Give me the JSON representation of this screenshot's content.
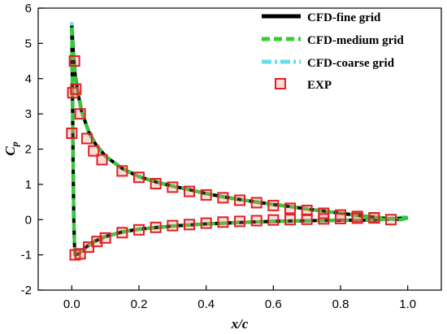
{
  "chart_data": {
    "type": "line",
    "title": "",
    "xlabel": "x/c",
    "ylabel": {
      "main": "C",
      "sub": "p"
    },
    "xlim": [
      -0.1,
      1.1
    ],
    "ylim": [
      -2,
      6
    ],
    "xticks": [
      0.0,
      0.2,
      0.4,
      0.6,
      0.8,
      1.0
    ],
    "xtick_labels": [
      "0.0",
      "0.2",
      "0.4",
      "0.6",
      "0.8",
      "1.0"
    ],
    "yticks": [
      -2,
      -1,
      0,
      1,
      2,
      3,
      4,
      5,
      6
    ],
    "ytick_labels": [
      "-2",
      "-1",
      "0",
      "1",
      "2",
      "3",
      "4",
      "5",
      "6"
    ],
    "grid": false,
    "legend_position": "top-right",
    "series": [
      {
        "name": "CFD-fine grid",
        "style": "solid",
        "color": "#000000",
        "upper": [
          [
            0.0,
            5.5
          ],
          [
            0.003,
            5.0
          ],
          [
            0.006,
            4.55
          ],
          [
            0.01,
            4.1
          ],
          [
            0.02,
            3.5
          ],
          [
            0.03,
            3.05
          ],
          [
            0.05,
            2.5
          ],
          [
            0.07,
            2.15
          ],
          [
            0.1,
            1.8
          ],
          [
            0.15,
            1.45
          ],
          [
            0.2,
            1.22
          ],
          [
            0.25,
            1.07
          ],
          [
            0.3,
            0.95
          ],
          [
            0.35,
            0.85
          ],
          [
            0.4,
            0.74
          ],
          [
            0.45,
            0.65
          ],
          [
            0.5,
            0.57
          ],
          [
            0.55,
            0.5
          ],
          [
            0.6,
            0.43
          ],
          [
            0.65,
            0.37
          ],
          [
            0.7,
            0.3
          ],
          [
            0.75,
            0.24
          ],
          [
            0.8,
            0.18
          ],
          [
            0.85,
            0.12
          ],
          [
            0.9,
            0.07
          ],
          [
            0.95,
            0.02
          ],
          [
            0.98,
            0.0
          ],
          [
            1.0,
            0.05
          ]
        ],
        "lower": [
          [
            0.0,
            5.5
          ],
          [
            0.002,
            3.5
          ],
          [
            0.004,
            1.5
          ],
          [
            0.006,
            0.0
          ],
          [
            0.008,
            -0.7
          ],
          [
            0.01,
            -1.0
          ],
          [
            0.02,
            -0.97
          ],
          [
            0.04,
            -0.8
          ],
          [
            0.06,
            -0.65
          ],
          [
            0.1,
            -0.48
          ],
          [
            0.15,
            -0.35
          ],
          [
            0.2,
            -0.27
          ],
          [
            0.3,
            -0.18
          ],
          [
            0.4,
            -0.12
          ],
          [
            0.5,
            -0.08
          ],
          [
            0.6,
            -0.05
          ],
          [
            0.7,
            -0.03
          ],
          [
            0.8,
            -0.02
          ],
          [
            0.9,
            -0.01
          ],
          [
            1.0,
            0.05
          ]
        ]
      },
      {
        "name": "CFD-medium grid",
        "style": "dashed",
        "color": "#33cc33",
        "upper": [
          [
            0.0,
            5.45
          ],
          [
            0.003,
            4.95
          ],
          [
            0.006,
            4.5
          ],
          [
            0.01,
            4.05
          ],
          [
            0.02,
            3.47
          ],
          [
            0.03,
            3.03
          ],
          [
            0.05,
            2.49
          ],
          [
            0.07,
            2.14
          ],
          [
            0.1,
            1.8
          ],
          [
            0.15,
            1.45
          ],
          [
            0.2,
            1.22
          ],
          [
            0.25,
            1.07
          ],
          [
            0.3,
            0.95
          ],
          [
            0.35,
            0.85
          ],
          [
            0.4,
            0.74
          ],
          [
            0.45,
            0.65
          ],
          [
            0.5,
            0.57
          ],
          [
            0.55,
            0.5
          ],
          [
            0.6,
            0.43
          ],
          [
            0.65,
            0.37
          ],
          [
            0.7,
            0.3
          ],
          [
            0.75,
            0.24
          ],
          [
            0.8,
            0.18
          ],
          [
            0.85,
            0.12
          ],
          [
            0.9,
            0.07
          ],
          [
            0.95,
            0.02
          ],
          [
            0.98,
            0.0
          ],
          [
            1.0,
            0.05
          ]
        ],
        "lower": [
          [
            0.0,
            5.45
          ],
          [
            0.002,
            3.5
          ],
          [
            0.004,
            1.5
          ],
          [
            0.006,
            0.0
          ],
          [
            0.008,
            -0.7
          ],
          [
            0.01,
            -1.0
          ],
          [
            0.02,
            -0.97
          ],
          [
            0.04,
            -0.8
          ],
          [
            0.06,
            -0.65
          ],
          [
            0.1,
            -0.48
          ],
          [
            0.15,
            -0.35
          ],
          [
            0.2,
            -0.27
          ],
          [
            0.3,
            -0.18
          ],
          [
            0.4,
            -0.12
          ],
          [
            0.5,
            -0.08
          ],
          [
            0.6,
            -0.05
          ],
          [
            0.7,
            -0.03
          ],
          [
            0.8,
            -0.02
          ],
          [
            0.9,
            -0.01
          ],
          [
            1.0,
            0.05
          ]
        ]
      },
      {
        "name": "CFD-coarse grid",
        "style": "dashdot",
        "color": "#66dde8",
        "upper": [
          [
            0.0,
            5.6
          ],
          [
            0.003,
            5.05
          ],
          [
            0.006,
            4.55
          ],
          [
            0.01,
            4.1
          ],
          [
            0.02,
            3.5
          ],
          [
            0.03,
            3.05
          ],
          [
            0.05,
            2.5
          ],
          [
            0.07,
            2.15
          ],
          [
            0.1,
            1.8
          ],
          [
            0.15,
            1.45
          ],
          [
            0.2,
            1.22
          ],
          [
            0.25,
            1.07
          ],
          [
            0.3,
            0.95
          ],
          [
            0.35,
            0.85
          ],
          [
            0.4,
            0.74
          ],
          [
            0.45,
            0.65
          ],
          [
            0.5,
            0.57
          ],
          [
            0.55,
            0.5
          ],
          [
            0.6,
            0.43
          ],
          [
            0.65,
            0.37
          ],
          [
            0.7,
            0.3
          ],
          [
            0.75,
            0.24
          ],
          [
            0.8,
            0.18
          ],
          [
            0.85,
            0.12
          ],
          [
            0.9,
            0.07
          ],
          [
            0.95,
            0.02
          ],
          [
            0.98,
            0.0
          ],
          [
            1.0,
            0.08
          ]
        ],
        "lower": [
          [
            0.0,
            5.6
          ],
          [
            0.002,
            3.5
          ],
          [
            0.004,
            1.5
          ],
          [
            0.006,
            0.0
          ],
          [
            0.008,
            -0.7
          ],
          [
            0.01,
            -1.0
          ],
          [
            0.02,
            -0.97
          ],
          [
            0.04,
            -0.8
          ],
          [
            0.06,
            -0.65
          ],
          [
            0.1,
            -0.48
          ],
          [
            0.15,
            -0.35
          ],
          [
            0.2,
            -0.27
          ],
          [
            0.3,
            -0.18
          ],
          [
            0.4,
            -0.12
          ],
          [
            0.5,
            -0.08
          ],
          [
            0.6,
            -0.05
          ],
          [
            0.7,
            -0.03
          ],
          [
            0.8,
            -0.02
          ],
          [
            0.9,
            -0.01
          ],
          [
            1.0,
            0.08
          ]
        ]
      },
      {
        "name": "EXP",
        "style": "markers",
        "color": "#e02020",
        "points": [
          [
            0.0,
            2.45
          ],
          [
            0.003,
            3.6
          ],
          [
            0.008,
            4.5
          ],
          [
            0.012,
            3.7
          ],
          [
            0.025,
            3.0
          ],
          [
            0.045,
            2.3
          ],
          [
            0.065,
            1.95
          ],
          [
            0.09,
            1.7
          ],
          [
            0.15,
            1.38
          ],
          [
            0.2,
            1.2
          ],
          [
            0.25,
            1.02
          ],
          [
            0.3,
            0.92
          ],
          [
            0.35,
            0.8
          ],
          [
            0.4,
            0.7
          ],
          [
            0.45,
            0.62
          ],
          [
            0.5,
            0.55
          ],
          [
            0.55,
            0.48
          ],
          [
            0.6,
            0.4
          ],
          [
            0.65,
            0.32
          ],
          [
            0.7,
            0.26
          ],
          [
            0.75,
            0.18
          ],
          [
            0.8,
            0.13
          ],
          [
            0.85,
            0.09
          ],
          [
            0.9,
            0.05
          ],
          [
            0.95,
            0.0
          ],
          [
            0.01,
            -1.0
          ],
          [
            0.025,
            -0.97
          ],
          [
            0.05,
            -0.78
          ],
          [
            0.075,
            -0.62
          ],
          [
            0.1,
            -0.52
          ],
          [
            0.15,
            -0.37
          ],
          [
            0.2,
            -0.29
          ],
          [
            0.25,
            -0.22
          ],
          [
            0.3,
            -0.17
          ],
          [
            0.35,
            -0.14
          ],
          [
            0.4,
            -0.1
          ],
          [
            0.45,
            -0.07
          ],
          [
            0.5,
            -0.05
          ],
          [
            0.55,
            -0.03
          ],
          [
            0.6,
            -0.01
          ],
          [
            0.65,
            0.0
          ],
          [
            0.7,
            0.01
          ],
          [
            0.75,
            0.02
          ],
          [
            0.8,
            0.03
          ],
          [
            0.85,
            0.04
          ],
          [
            0.9,
            0.05
          ]
        ]
      }
    ]
  }
}
